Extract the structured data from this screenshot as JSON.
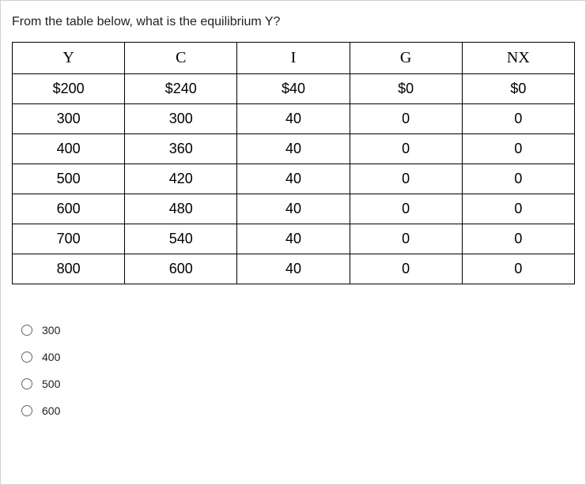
{
  "question": "From the table below, what is the equilibrium Y?",
  "table": {
    "columns": [
      "Y",
      "C",
      "I",
      "G",
      "NX"
    ],
    "rows": [
      [
        "$200",
        "$240",
        "$40",
        "$0",
        "$0"
      ],
      [
        "300",
        "300",
        "40",
        "0",
        "0"
      ],
      [
        "400",
        "360",
        "40",
        "0",
        "0"
      ],
      [
        "500",
        "420",
        "40",
        "0",
        "0"
      ],
      [
        "600",
        "480",
        "40",
        "0",
        "0"
      ],
      [
        "700",
        "540",
        "40",
        "0",
        "0"
      ],
      [
        "800",
        "600",
        "40",
        "0",
        "0"
      ]
    ],
    "border_color": "#000000",
    "header_font": "Times New Roman",
    "cell_font": "Arial",
    "header_fontsize": 20,
    "cell_fontsize": 18
  },
  "options": [
    {
      "label": "300"
    },
    {
      "label": "400"
    },
    {
      "label": "500"
    },
    {
      "label": "600"
    }
  ],
  "colors": {
    "background": "#ffffff",
    "text": "#222222",
    "container_border": "#d0d0d0",
    "radio_border": "#666666"
  }
}
